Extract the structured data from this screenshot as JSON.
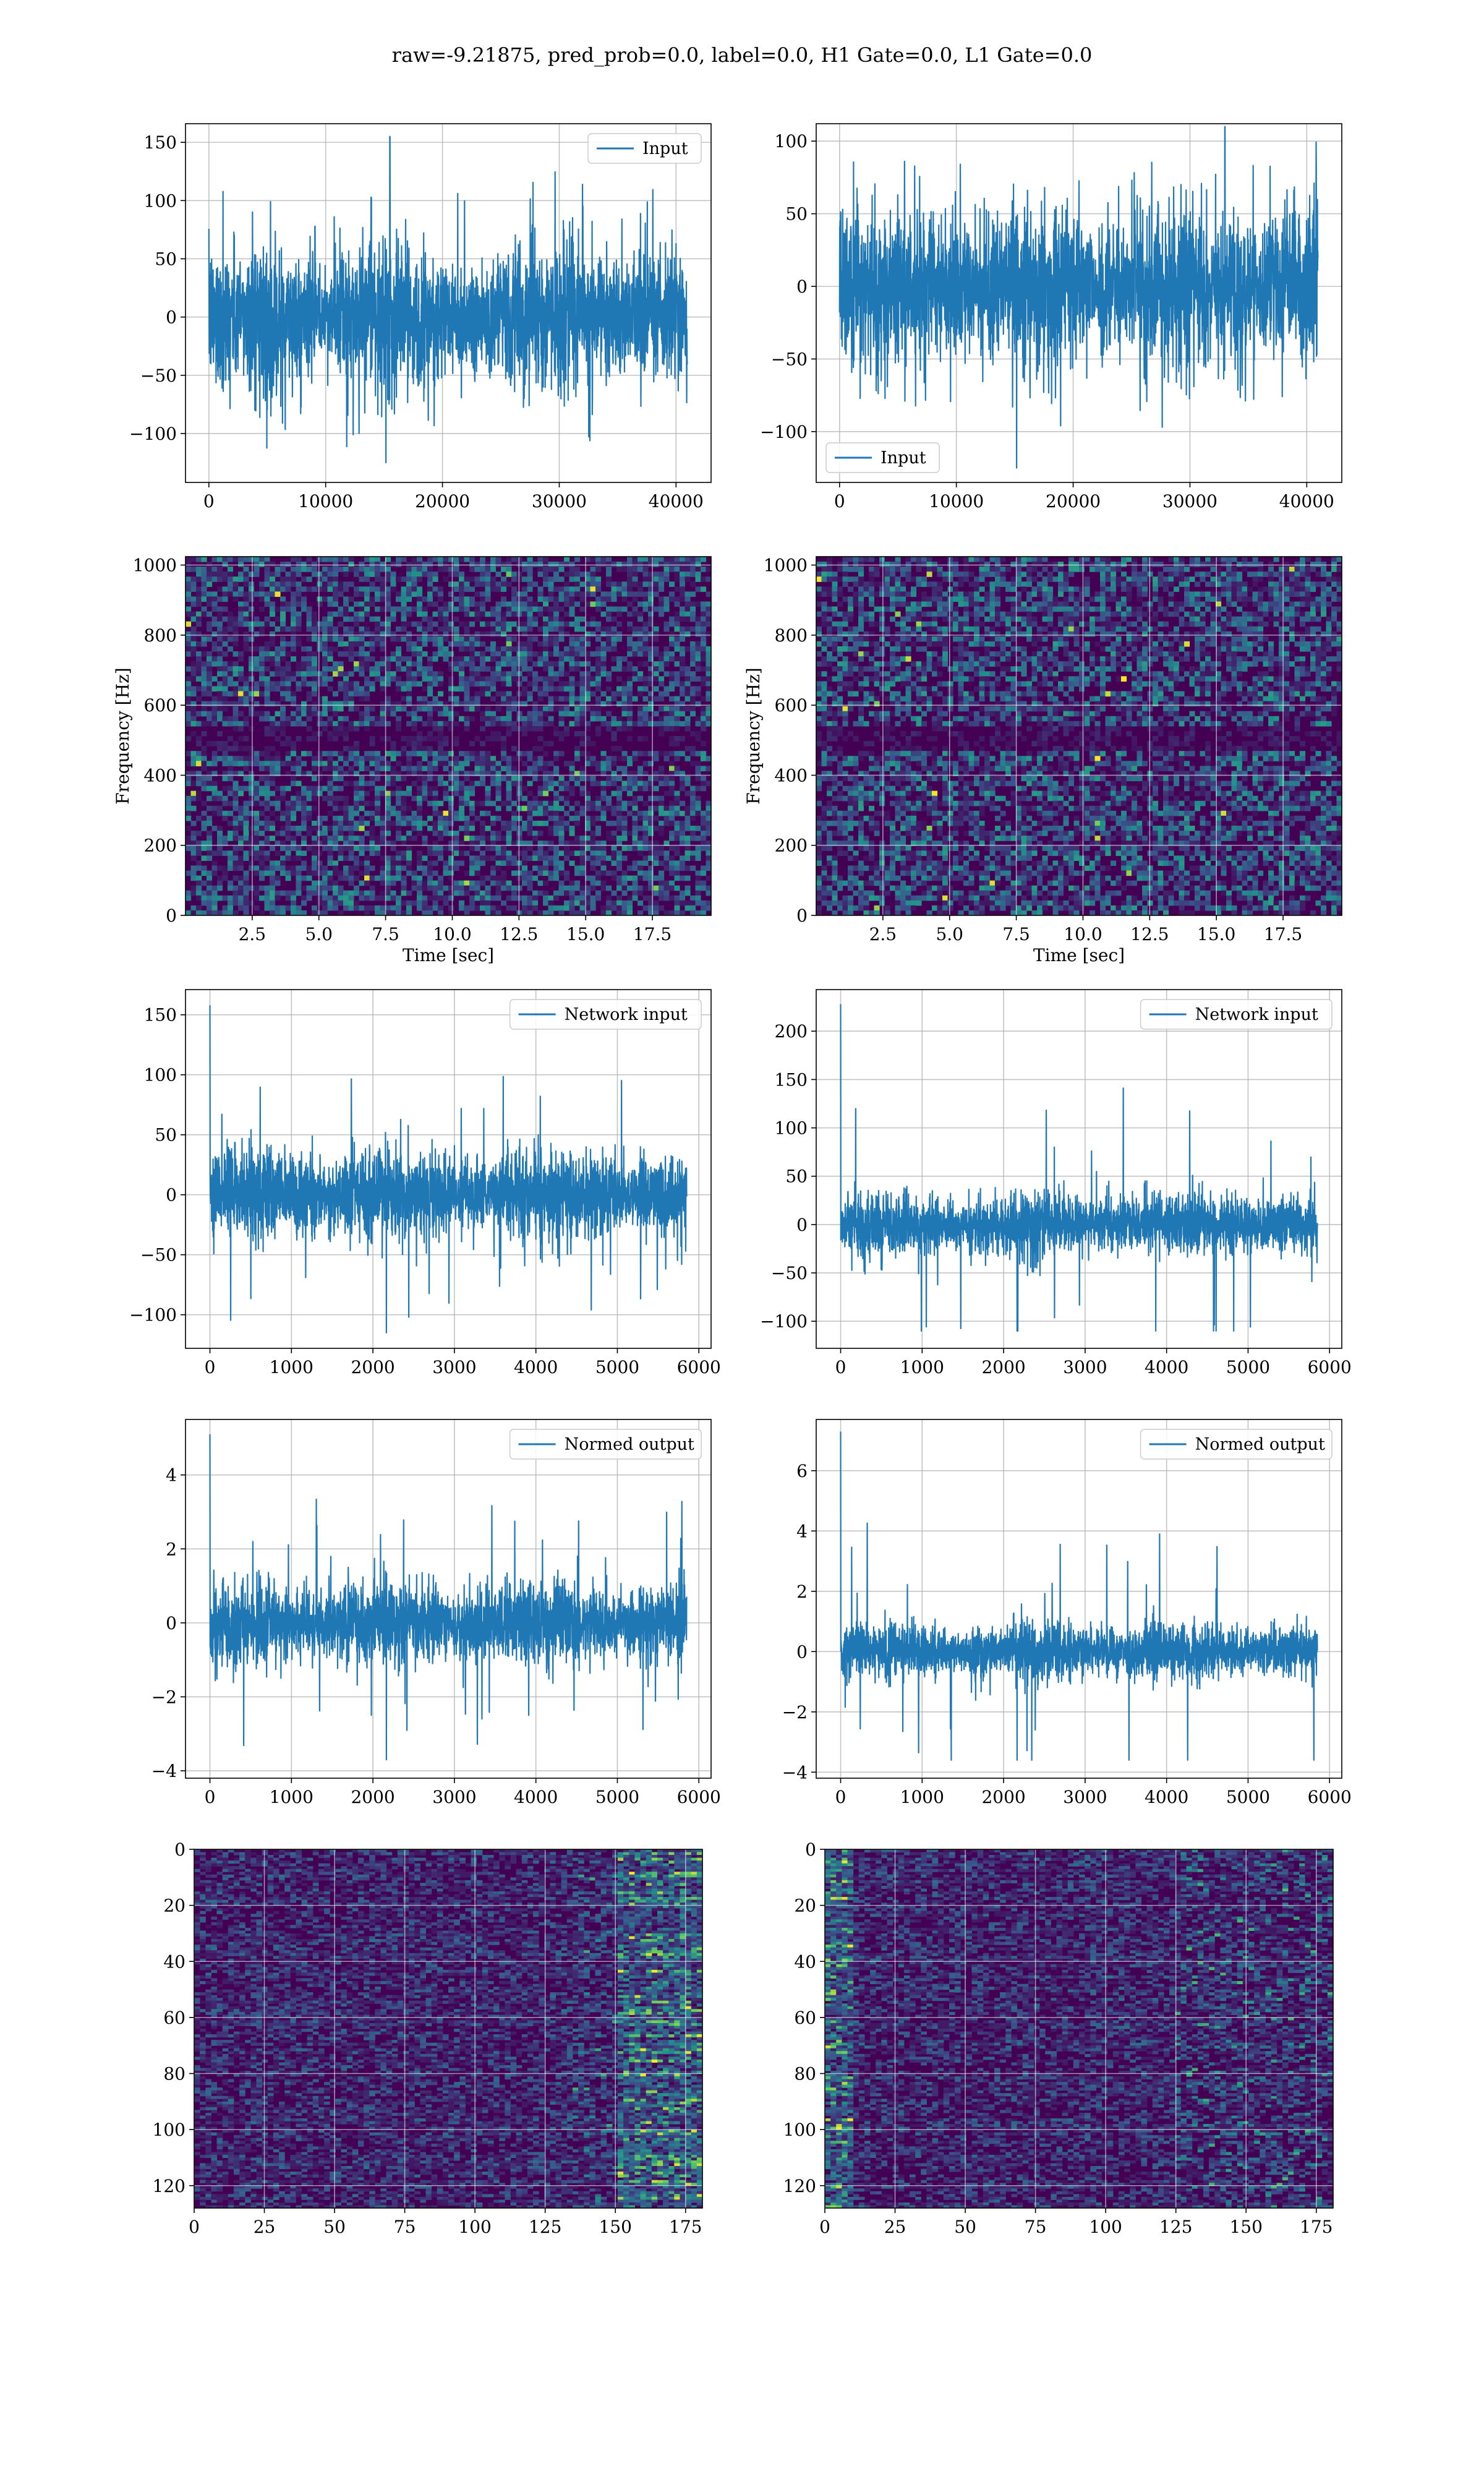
{
  "figure": {
    "title": "raw=-9.21875, pred_prob=0.0, label=0.0, H1 Gate=0.0, L1 Gate=0.0",
    "colors": {
      "line": "#1f77b4",
      "viridis_low": "#440154",
      "viridis_high": "#fde725"
    }
  },
  "chart_data": [
    {
      "id": "input-h1",
      "type": "line",
      "title": "",
      "xlabel": "",
      "ylabel": "",
      "xlim": [
        -2000,
        43000
      ],
      "ylim": [
        -142,
        166
      ],
      "xticks": [
        0,
        10000,
        20000,
        30000,
        40000
      ],
      "yticks": [
        -100,
        -50,
        0,
        50,
        100,
        150
      ],
      "series": [
        {
          "name": "Input",
          "n_samples": 40960,
          "x_range": [
            0,
            40960
          ],
          "typical_band": [
            -65,
            65
          ],
          "max": 155,
          "min": -125,
          "max_at": 15500
        }
      ],
      "legend": "upper right",
      "grid": true
    },
    {
      "id": "input-l1",
      "type": "line",
      "title": "",
      "xlabel": "",
      "ylabel": "",
      "xlim": [
        -2000,
        43000
      ],
      "ylim": [
        -135,
        112
      ],
      "xticks": [
        0,
        10000,
        20000,
        30000,
        40000
      ],
      "yticks": [
        -100,
        -50,
        0,
        50,
        100
      ],
      "series": [
        {
          "name": "Input",
          "n_samples": 40960,
          "x_range": [
            0,
            40960
          ],
          "typical_band": [
            -60,
            60
          ],
          "max": 110,
          "min": -125,
          "max_at": 33000
        }
      ],
      "legend": "lower left",
      "grid": true
    },
    {
      "id": "spec-h1",
      "type": "heatmap",
      "title": "",
      "xlabel": "Time [sec]",
      "ylabel": "Frequency [Hz]",
      "xlim": [
        0,
        19.7
      ],
      "ylim": [
        0,
        1024
      ],
      "xticks": [
        2.5,
        5.0,
        7.5,
        10.0,
        12.5,
        15.0,
        17.5
      ],
      "yticks": [
        0,
        200,
        400,
        600,
        800,
        1000
      ],
      "colormap": "viridis",
      "dark_band_hz": [
        480,
        530
      ],
      "grid": true
    },
    {
      "id": "spec-l1",
      "type": "heatmap",
      "title": "",
      "xlabel": "Time [sec]",
      "ylabel": "Frequency [Hz]",
      "xlim": [
        0,
        19.7
      ],
      "ylim": [
        0,
        1024
      ],
      "xticks": [
        2.5,
        5.0,
        7.5,
        10.0,
        12.5,
        15.0,
        17.5
      ],
      "yticks": [
        0,
        200,
        400,
        600,
        800,
        1000
      ],
      "colormap": "viridis",
      "dark_band_hz": [
        480,
        530
      ],
      "grid": true
    },
    {
      "id": "netinput-h1",
      "type": "line",
      "title": "",
      "xlabel": "",
      "ylabel": "",
      "xlim": [
        -300,
        6150
      ],
      "ylim": [
        -128,
        171
      ],
      "xticks": [
        0,
        1000,
        2000,
        3000,
        4000,
        5000,
        6000
      ],
      "yticks": [
        -100,
        -50,
        0,
        50,
        100,
        150
      ],
      "series": [
        {
          "name": "Network input",
          "n_samples": 5850,
          "x_range": [
            0,
            5850
          ],
          "typical_band": [
            -40,
            40
          ],
          "max": 158,
          "min": -115,
          "max_at": 0
        }
      ],
      "legend": "upper right",
      "grid": true
    },
    {
      "id": "netinput-l1",
      "type": "line",
      "title": "",
      "xlabel": "",
      "ylabel": "",
      "xlim": [
        -300,
        6150
      ],
      "ylim": [
        -128,
        243
      ],
      "xticks": [
        0,
        1000,
        2000,
        3000,
        4000,
        5000,
        6000
      ],
      "yticks": [
        -100,
        -50,
        0,
        50,
        100,
        150,
        200
      ],
      "series": [
        {
          "name": "Network input",
          "n_samples": 5850,
          "x_range": [
            0,
            5850
          ],
          "typical_band": [
            -35,
            35
          ],
          "max": 228,
          "min": -110,
          "max_at": 0
        }
      ],
      "legend": "upper right",
      "grid": true
    },
    {
      "id": "normed-h1",
      "type": "line",
      "title": "",
      "xlabel": "",
      "ylabel": "",
      "xlim": [
        -300,
        6150
      ],
      "ylim": [
        -4.2,
        5.5
      ],
      "xticks": [
        0,
        1000,
        2000,
        3000,
        4000,
        5000,
        6000
      ],
      "yticks": [
        -4,
        -2,
        0,
        2,
        4
      ],
      "series": [
        {
          "name": "Normed output",
          "n_samples": 5850,
          "x_range": [
            0,
            5850
          ],
          "typical_band": [
            -1.2,
            1.2
          ],
          "max": 5.1,
          "min": -3.7,
          "max_at": 0
        }
      ],
      "legend": "upper right",
      "grid": true
    },
    {
      "id": "normed-l1",
      "type": "line",
      "title": "",
      "xlabel": "",
      "ylabel": "",
      "xlim": [
        -300,
        6150
      ],
      "ylim": [
        -4.2,
        7.7
      ],
      "xticks": [
        0,
        1000,
        2000,
        3000,
        4000,
        5000,
        6000
      ],
      "yticks": [
        -4,
        -2,
        0,
        2,
        4,
        6
      ],
      "series": [
        {
          "name": "Normed output",
          "n_samples": 5850,
          "x_range": [
            0,
            5850
          ],
          "typical_band": [
            -1.0,
            1.0
          ],
          "max": 7.3,
          "min": -3.6,
          "max_at": 0
        }
      ],
      "legend": "upper right",
      "grid": true
    },
    {
      "id": "features-h1",
      "type": "heatmap",
      "title": "",
      "xlabel": "",
      "ylabel": "",
      "xlim": [
        0,
        181
      ],
      "ylim": [
        0,
        128
      ],
      "y_inverted": true,
      "xticks": [
        0,
        25,
        50,
        75,
        100,
        125,
        150,
        175
      ],
      "yticks": [
        0,
        20,
        40,
        60,
        80,
        100,
        120
      ],
      "colormap": "viridis",
      "bright_columns": [
        150,
        181
      ],
      "grid": true
    },
    {
      "id": "features-l1",
      "type": "heatmap",
      "title": "",
      "xlabel": "",
      "ylabel": "",
      "xlim": [
        0,
        181
      ],
      "ylim": [
        0,
        128
      ],
      "y_inverted": true,
      "xticks": [
        0,
        25,
        50,
        75,
        100,
        125,
        150,
        175
      ],
      "yticks": [
        0,
        20,
        40,
        60,
        80,
        100,
        120
      ],
      "colormap": "viridis",
      "bright_columns": [
        0,
        10
      ],
      "grid": true
    }
  ]
}
